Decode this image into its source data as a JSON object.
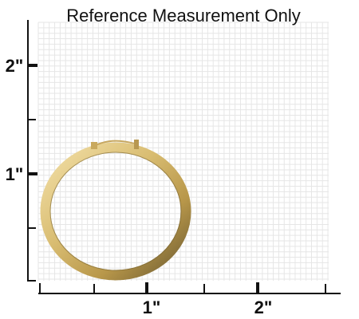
{
  "title": "Reference Measurement Only",
  "y_axis_labels": [
    "2\"",
    "1\""
  ],
  "x_axis_labels": [
    "1\"",
    "2\""
  ]
}
